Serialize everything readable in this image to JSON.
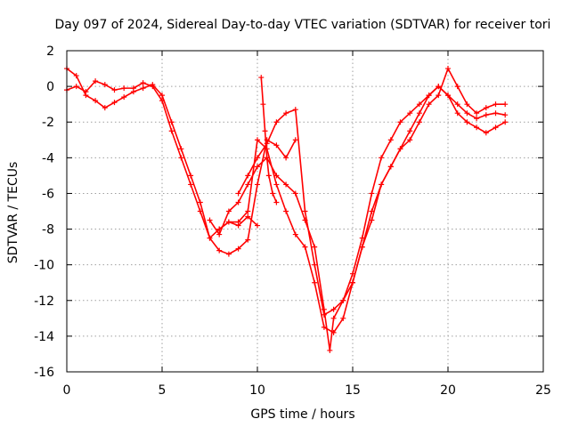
{
  "chart_data": {
    "type": "scatter",
    "title": "Day 097 of 2024, Sidereal Day-to-day VTEC variation (SDTVAR) for receiver tori",
    "xlabel": "GPS time / hours",
    "ylabel": "SDTVAR / TECUs",
    "xlim": [
      0,
      25
    ],
    "ylim": [
      -16,
      2
    ],
    "xticks": [
      0,
      5,
      10,
      15,
      20,
      25
    ],
    "yticks": [
      2,
      0,
      -2,
      -4,
      -6,
      -8,
      -10,
      -12,
      -14,
      -16
    ],
    "grid": true,
    "marker": "plus",
    "color": "#ff0000",
    "series": [
      {
        "x": [
          0.0,
          0.5,
          1.0,
          1.5,
          2.0,
          2.5,
          3.0,
          3.5,
          4.0,
          4.5,
          5.0,
          5.5,
          6.0,
          6.5,
          7.0,
          7.5,
          8.0,
          8.5,
          9.0,
          9.5,
          10.0
        ],
        "y": [
          -0.2,
          0.0,
          -0.3,
          0.3,
          0.1,
          -0.2,
          -0.1,
          -0.1,
          0.2,
          0.0,
          -0.8,
          -2.5,
          -4.0,
          -5.5,
          -7.0,
          -8.5,
          -8.0,
          -7.6,
          -7.8,
          -7.3,
          -7.8
        ]
      },
      {
        "x": [
          0.0,
          0.5,
          1.0,
          1.5,
          2.0,
          2.5,
          3.0,
          3.5,
          4.0,
          4.5,
          5.0,
          5.5,
          6.0,
          6.5,
          7.0,
          7.5,
          8.0,
          8.5,
          9.0,
          9.5,
          10.0,
          10.5,
          11.0,
          11.5,
          12.0
        ],
        "y": [
          1.0,
          0.6,
          -0.5,
          -0.8,
          -1.2,
          -0.9,
          -0.6,
          -0.3,
          -0.1,
          0.1,
          -0.5,
          -2.0,
          -3.5,
          -5.0,
          -6.5,
          -8.5,
          -9.2,
          -9.4,
          -9.1,
          -8.6,
          -5.5,
          -3.0,
          -3.3,
          -4.0,
          -3.0
        ]
      },
      {
        "x": [
          7.5,
          8.0,
          8.5,
          9.0,
          9.5,
          10.0,
          10.5,
          11.0,
          11.5,
          12.0,
          12.5,
          13.0,
          13.5,
          13.8,
          14.0,
          14.5,
          15.0,
          15.5,
          16.0,
          16.5,
          17.0,
          17.5,
          18.0,
          18.5,
          19.0,
          19.5,
          20.0,
          20.5,
          21.0,
          21.5,
          22.0,
          22.5,
          23.0
        ],
        "y": [
          -7.5,
          -8.3,
          -7.0,
          -6.5,
          -5.5,
          -4.5,
          -4.0,
          -5.0,
          -5.5,
          -6.0,
          -7.5,
          -9.0,
          -12.5,
          -14.8,
          -13.0,
          -12.0,
          -11.0,
          -9.0,
          -7.5,
          -5.5,
          -4.5,
          -3.5,
          -3.0,
          -2.0,
          -1.0,
          -0.5,
          1.0,
          0.0,
          -1.0,
          -1.5,
          -1.2,
          -1.0,
          -1.0
        ]
      },
      {
        "x": [
          8.0,
          8.5,
          9.0,
          9.5,
          10.0,
          10.5,
          11.0,
          11.5,
          12.0,
          12.5,
          13.0,
          13.5,
          14.0,
          14.5,
          15.0,
          15.5,
          16.0,
          16.5,
          17.0,
          17.5,
          18.0,
          18.5,
          19.0,
          19.5,
          20.0,
          20.5,
          21.0,
          21.5,
          22.0,
          22.5,
          23.0
        ],
        "y": [
          -8.0,
          -7.6,
          -7.6,
          -7.0,
          -3.0,
          -3.5,
          -5.5,
          -7.0,
          -8.3,
          -9.0,
          -11.0,
          -13.5,
          -13.8,
          -13.0,
          -11.0,
          -9.0,
          -7.0,
          -5.5,
          -4.5,
          -3.5,
          -2.5,
          -1.5,
          -0.5,
          0.0,
          -0.5,
          -1.5,
          -2.0,
          -2.3,
          -2.6,
          -2.3,
          -2.0
        ]
      },
      {
        "x": [
          9.0,
          9.5,
          10.0,
          10.5,
          11.0,
          11.5,
          12.0,
          12.5,
          13.0,
          13.5,
          14.0,
          14.5,
          15.0,
          15.5,
          16.0,
          16.5,
          17.0,
          17.5,
          18.0,
          18.5,
          19.0,
          19.5,
          20.0,
          20.5,
          21.0,
          21.5,
          22.0,
          22.5,
          23.0
        ],
        "y": [
          -6.0,
          -5.0,
          -4.0,
          -3.2,
          -2.0,
          -1.5,
          -1.3,
          -7.0,
          -10.0,
          -12.8,
          -12.5,
          -12.0,
          -10.5,
          -8.5,
          -6.0,
          -4.0,
          -3.0,
          -2.0,
          -1.5,
          -1.0,
          -0.5,
          0.0,
          -0.5,
          -1.0,
          -1.5,
          -1.8,
          -1.6,
          -1.5,
          -1.6
        ]
      },
      {
        "x": [
          10.2,
          10.3,
          10.4,
          10.5,
          10.6,
          10.8,
          11.0
        ],
        "y": [
          0.5,
          -1.0,
          -2.5,
          -4.0,
          -5.0,
          -6.0,
          -6.5
        ]
      }
    ]
  }
}
